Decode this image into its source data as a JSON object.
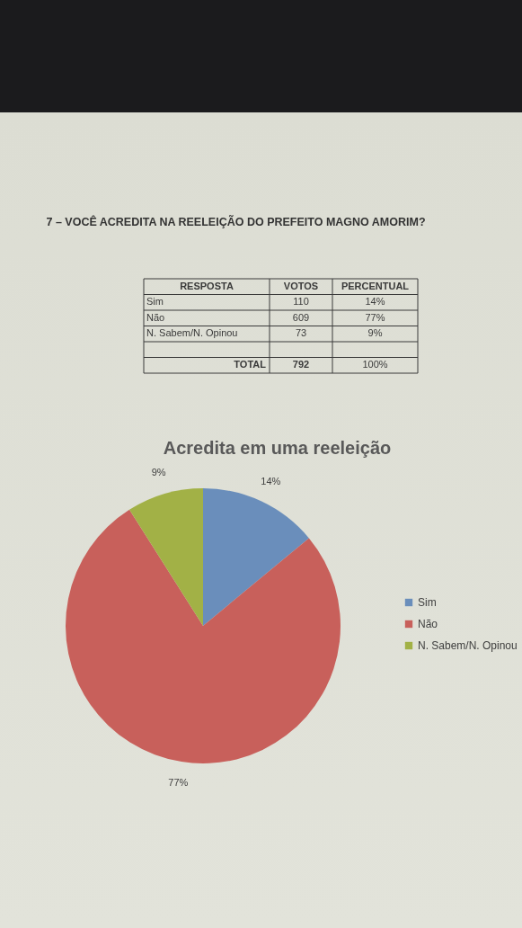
{
  "chart_data": [
    {
      "type": "other",
      "title": "7 – VOCÊ ACREDITA NA REELEIÇÃO DO PREFEITO MAGNO AMORIM?",
      "categories": [
        "Sim",
        "Não",
        "N. Sabem/N. Opinou"
      ],
      "series": [
        {
          "name": "VOTOS",
          "values": [
            110,
            609,
            73
          ]
        },
        {
          "name": "PERCENTUAL",
          "values": [
            14,
            77,
            9
          ],
          "value_labels": [
            "14%",
            "77%",
            "9%"
          ]
        }
      ],
      "data_labels": true,
      "totals": [
        "792",
        "100%"
      ],
      "annotations": [
        "RESPOSTA",
        "TOTAL"
      ]
    },
    {
      "type": "pie",
      "title": "Acredita em uma reeleição",
      "categories": [
        "Sim",
        "Não",
        "N. Sabem/N. Opinou"
      ],
      "values": [
        14,
        77,
        9
      ],
      "colors": [
        "#6a8ebb",
        "#c8605b",
        "#a2b146"
      ],
      "value_labels": [
        "14%",
        "77%",
        "9%"
      ],
      "legend": "right"
    }
  ]
}
